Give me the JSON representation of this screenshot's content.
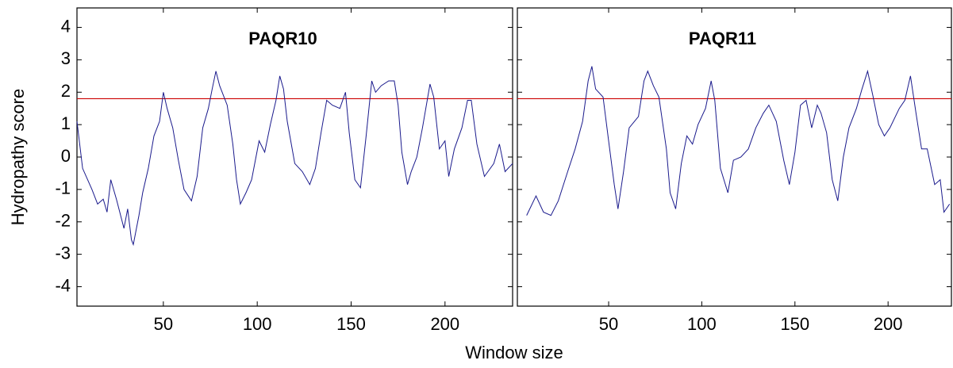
{
  "chart_data": [
    {
      "type": "line",
      "title": "PAQR10",
      "ylabel": "Hydropathy score",
      "xlabel": "Window size",
      "xlim": [
        4,
        236
      ],
      "ylim": [
        -4.6,
        4.6
      ],
      "xticks": [
        50,
        100,
        150,
        200
      ],
      "yticks": [
        -4,
        -3,
        -2,
        -1,
        0,
        1,
        2,
        3,
        4
      ],
      "threshold": 1.8,
      "threshold_color": "#cc0000",
      "x": [
        4,
        7,
        12,
        15,
        18,
        20,
        22,
        25,
        29,
        31,
        33,
        34,
        37,
        39,
        42,
        45,
        48,
        50,
        52,
        55,
        58,
        61,
        65,
        68,
        71,
        74,
        76,
        78,
        80,
        84,
        87,
        89,
        91,
        94,
        97,
        101,
        104,
        107,
        110,
        112,
        114,
        116,
        120,
        124,
        128,
        131,
        134,
        137,
        140,
        144,
        147,
        149,
        152,
        155,
        158,
        161,
        163,
        166,
        170,
        173,
        175,
        177,
        180,
        182,
        185,
        188,
        192,
        194,
        197,
        200,
        202,
        205,
        209,
        212,
        214,
        217,
        221,
        226,
        229,
        232,
        236
      ],
      "series": [
        {
          "color": "#1a1a8c",
          "values": [
            1.1,
            -0.35,
            -1.0,
            -1.45,
            -1.3,
            -1.7,
            -0.7,
            -1.3,
            -2.2,
            -1.6,
            -2.55,
            -2.7,
            -1.8,
            -1.1,
            -0.35,
            0.65,
            1.1,
            2.0,
            1.5,
            0.9,
            -0.1,
            -1.0,
            -1.35,
            -0.6,
            0.9,
            1.5,
            2.1,
            2.65,
            2.2,
            1.6,
            0.4,
            -0.7,
            -1.45,
            -1.1,
            -0.7,
            0.5,
            0.15,
            1.0,
            1.75,
            2.5,
            2.1,
            1.1,
            -0.2,
            -0.45,
            -0.85,
            -0.35,
            0.75,
            1.75,
            1.6,
            1.5,
            2.0,
            0.75,
            -0.7,
            -0.95,
            0.65,
            2.35,
            2.0,
            2.2,
            2.35,
            2.35,
            1.6,
            0.15,
            -0.85,
            -0.45,
            0.0,
            0.9,
            2.25,
            1.85,
            0.25,
            0.5,
            -0.6,
            0.25,
            0.9,
            1.75,
            1.75,
            0.4,
            -0.6,
            -0.2,
            0.4,
            -0.45,
            -0.2
          ]
        }
      ]
    },
    {
      "type": "line",
      "title": "PAQR11",
      "xlim": [
        1,
        234
      ],
      "ylim": [
        -4.6,
        4.6
      ],
      "xticks": [
        50,
        100,
        150,
        200
      ],
      "yticks": [
        -4,
        -3,
        -2,
        -1,
        0,
        1,
        2,
        3,
        4
      ],
      "threshold": 1.8,
      "threshold_color": "#cc0000",
      "x": [
        6,
        11,
        15,
        19,
        23,
        28,
        32,
        36,
        39,
        41,
        43,
        47,
        50,
        53,
        55,
        58,
        61,
        66,
        69,
        71,
        74,
        77,
        81,
        83,
        86,
        89,
        92,
        95,
        98,
        102,
        105,
        107,
        110,
        114,
        117,
        121,
        125,
        129,
        133,
        136,
        140,
        144,
        147,
        150,
        153,
        156,
        159,
        162,
        164,
        167,
        170,
        173,
        176,
        179,
        183,
        186,
        189,
        192,
        195,
        198,
        201,
        206,
        209,
        212,
        215,
        218,
        221,
        225,
        228,
        230,
        233
      ],
      "series": [
        {
          "color": "#1a1a8c",
          "values": [
            -1.8,
            -1.2,
            -1.7,
            -1.8,
            -1.35,
            -0.45,
            0.25,
            1.1,
            2.35,
            2.8,
            2.1,
            1.85,
            0.5,
            -0.85,
            -1.6,
            -0.45,
            0.9,
            1.25,
            2.35,
            2.65,
            2.2,
            1.85,
            0.25,
            -1.1,
            -1.6,
            -0.2,
            0.65,
            0.4,
            1.0,
            1.5,
            2.35,
            1.75,
            -0.35,
            -1.1,
            -0.1,
            0.0,
            0.25,
            0.9,
            1.35,
            1.6,
            1.1,
            -0.1,
            -0.85,
            0.15,
            1.6,
            1.75,
            0.9,
            1.6,
            1.35,
            0.75,
            -0.7,
            -1.35,
            0.0,
            0.9,
            1.5,
            2.1,
            2.65,
            1.85,
            1.0,
            0.65,
            0.9,
            1.5,
            1.75,
            2.5,
            1.35,
            0.25,
            0.25,
            -0.85,
            -0.7,
            -1.7,
            -1.45
          ]
        }
      ]
    }
  ]
}
